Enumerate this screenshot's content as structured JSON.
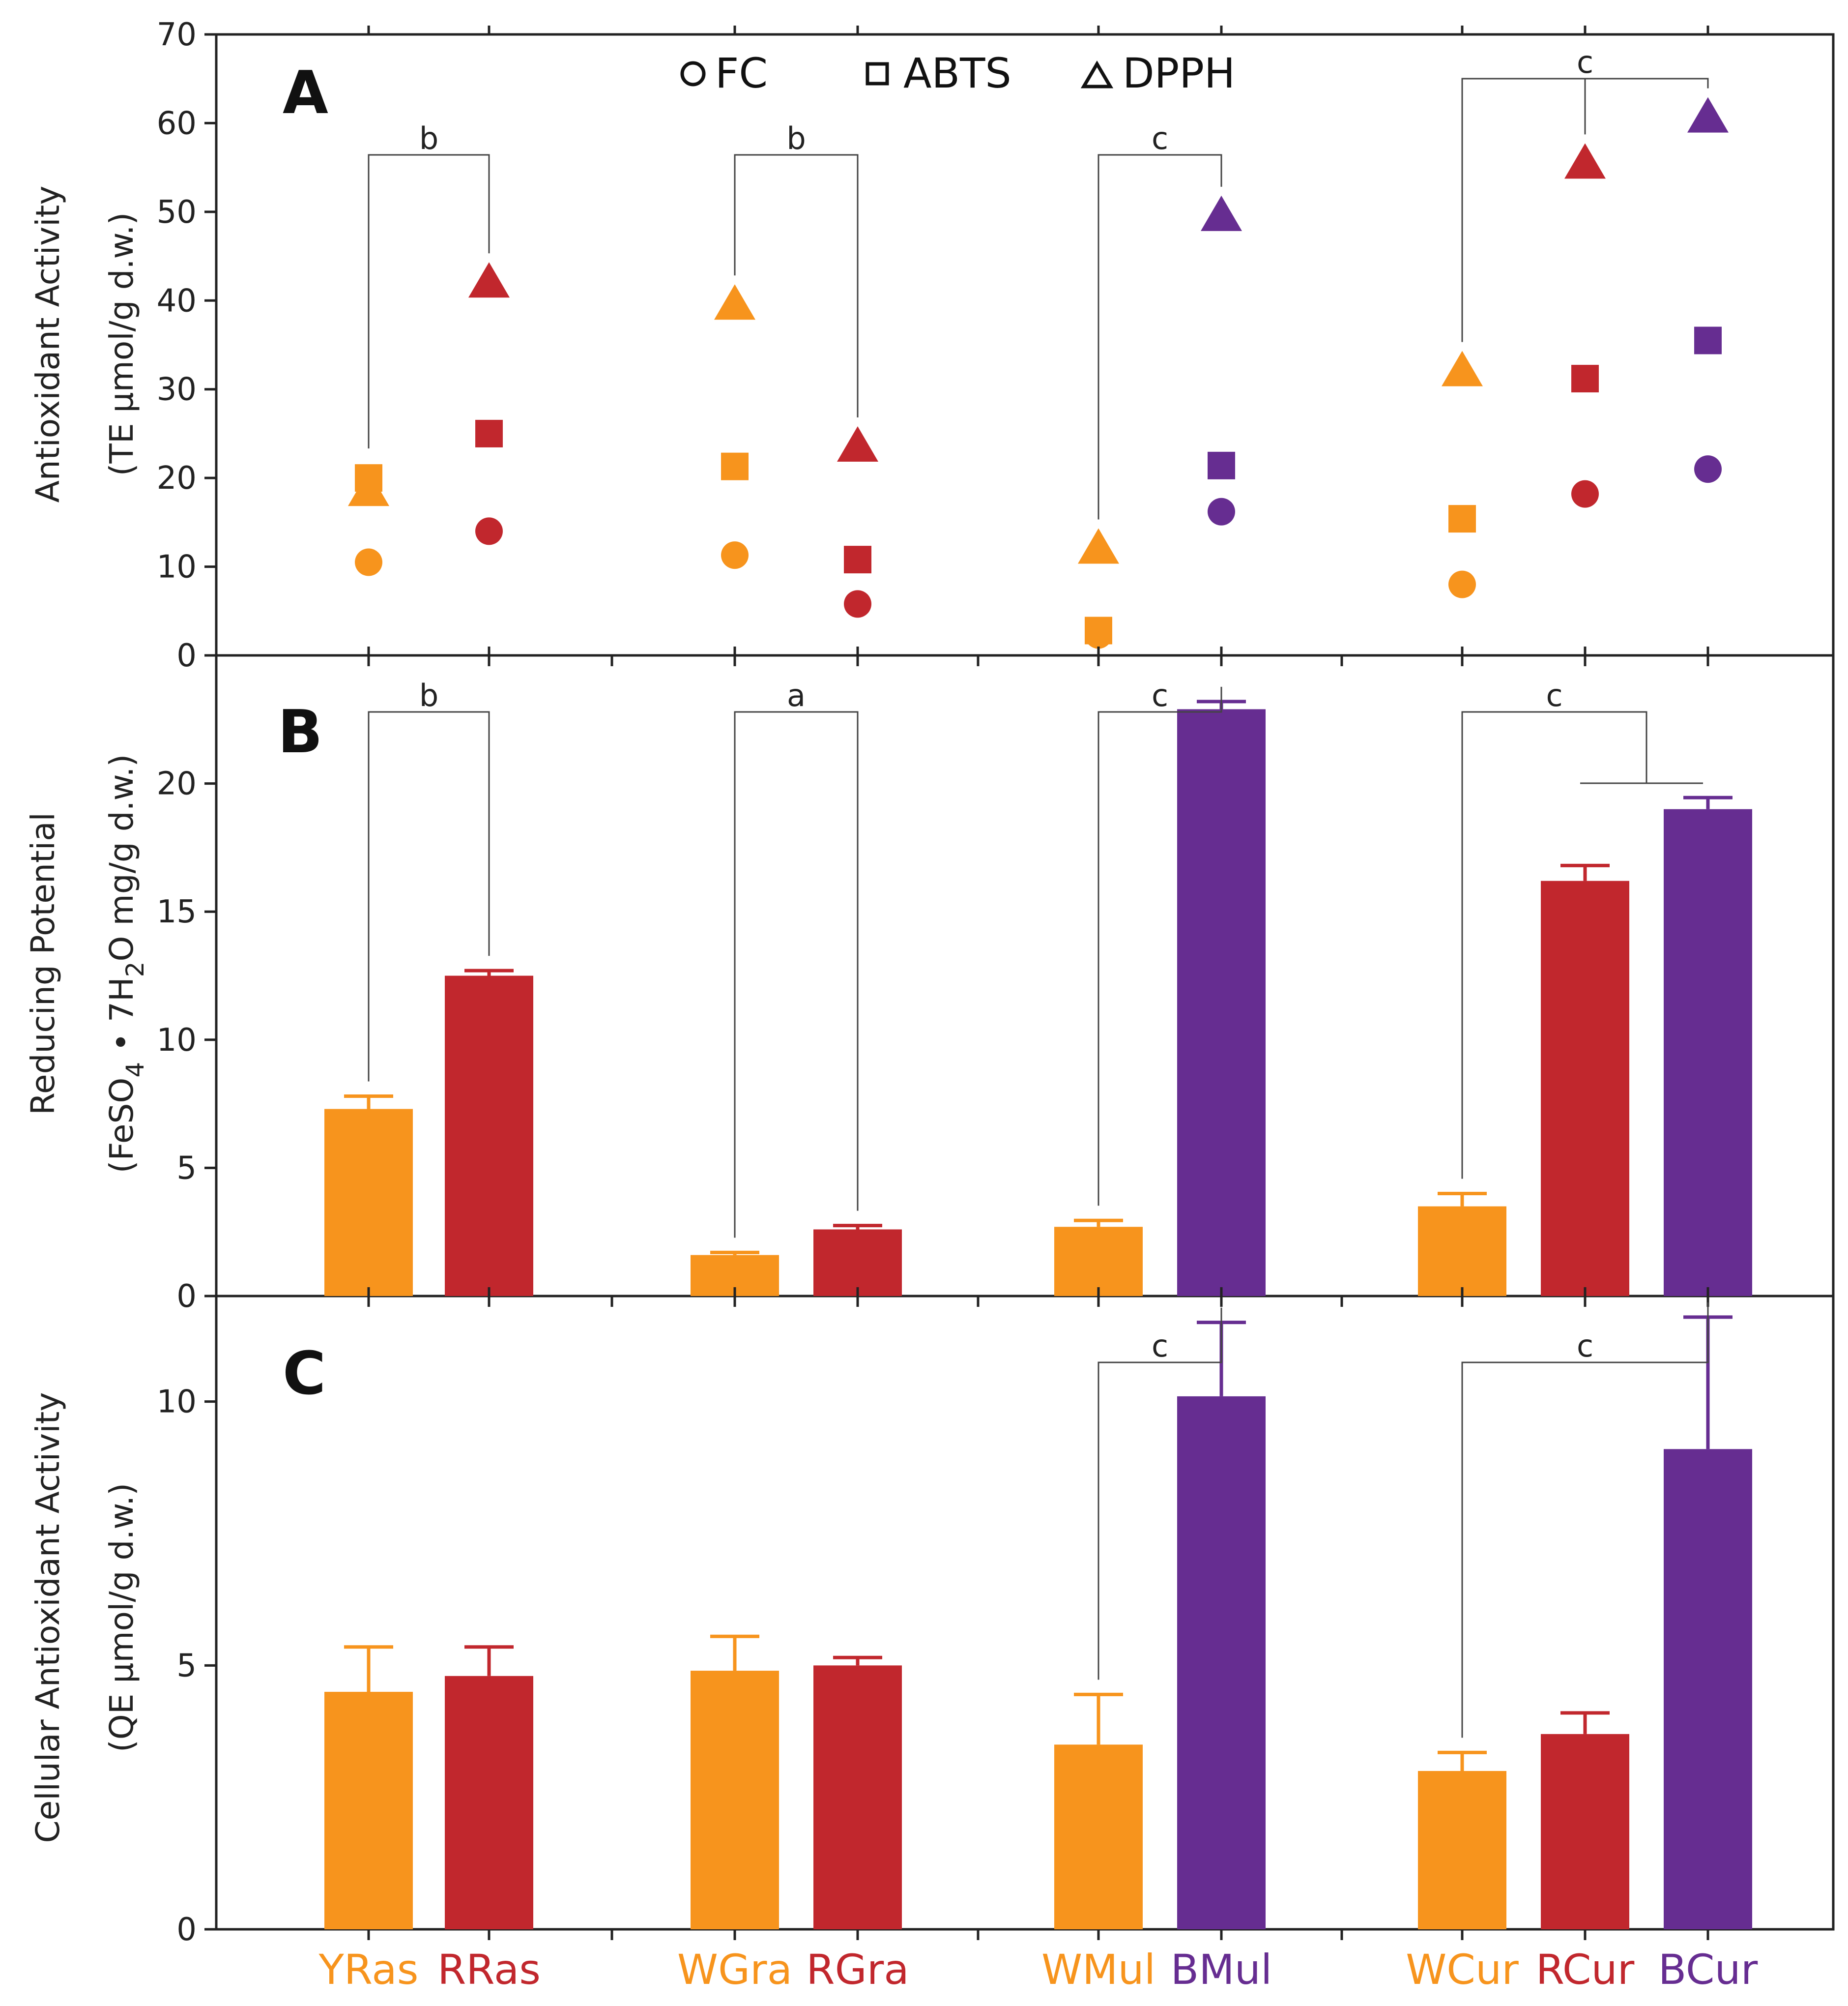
{
  "colors": {
    "orange": "#f7941d",
    "red": "#c1272d",
    "purple": "#662d91"
  },
  "categories": [
    "YRas",
    "RRas",
    "WGra",
    "RGra",
    "WMul",
    "BMul",
    "WCur",
    "RCur",
    "BCur"
  ],
  "category_colors": [
    "orange",
    "red",
    "orange",
    "red",
    "orange",
    "purple",
    "orange",
    "red",
    "purple"
  ],
  "legend": {
    "fc": "FC",
    "abts": "ABTS",
    "dpph": "DPPH"
  },
  "chart_data": [
    {
      "panel": "A",
      "type": "scatter",
      "ylabel_line1": "Antioxidant Activity",
      "ylabel_line2": "(TE μmol/g d.w.)",
      "ylim": [
        0,
        70
      ],
      "yticks": [
        0,
        10,
        20,
        30,
        40,
        50,
        60,
        70
      ],
      "series": [
        {
          "name": "FC",
          "marker": "circle",
          "values": [
            10.5,
            14,
            11.3,
            5.8,
            2.3,
            16.2,
            8,
            18.2,
            21
          ]
        },
        {
          "name": "ABTS",
          "marker": "square",
          "values": [
            20,
            25,
            21.3,
            10.8,
            2.8,
            21.4,
            15.4,
            31.2,
            35.5
          ]
        },
        {
          "name": "DPPH",
          "marker": "triangle",
          "values": [
            18.5,
            42,
            39.5,
            23.5,
            12,
            49.5,
            32,
            55.4,
            60.6
          ]
        }
      ],
      "significance": [
        {
          "label": "b",
          "groups": [
            0,
            1
          ]
        },
        {
          "label": "b",
          "groups": [
            2,
            3
          ]
        },
        {
          "label": "c",
          "groups": [
            4,
            5
          ]
        },
        {
          "label": "c",
          "groups": [
            6,
            7,
            8
          ]
        }
      ]
    },
    {
      "panel": "B",
      "type": "bar",
      "ylabel_line1": "Reducing Potential",
      "ylabel_line2": "(FeSO4 • 7H2O mg/g d.w.)",
      "ylim": [
        0,
        25
      ],
      "yticks": [
        0,
        5,
        10,
        15,
        20
      ],
      "values": [
        7.3,
        12.5,
        1.6,
        2.6,
        2.7,
        22.9,
        3.5,
        16.2,
        19
      ],
      "errors": [
        0.5,
        0.2,
        0.1,
        0.15,
        0.25,
        0.3,
        0.5,
        0.6,
        0.45
      ],
      "significance": [
        {
          "label": "b",
          "groups": [
            0,
            1
          ]
        },
        {
          "label": "a",
          "groups": [
            2,
            3
          ]
        },
        {
          "label": "c",
          "groups": [
            4,
            5
          ]
        },
        {
          "label": "c",
          "groups": [
            6,
            7,
            8
          ]
        }
      ]
    },
    {
      "panel": "C",
      "type": "bar",
      "ylabel_line1": "Cellular Antioxidant Activity",
      "ylabel_line2": "(QE μmol/g d.w.)",
      "ylim": [
        0,
        12
      ],
      "yticks": [
        0,
        5,
        10
      ],
      "values": [
        4.5,
        4.8,
        4.9,
        5,
        3.5,
        10.1,
        3,
        3.7,
        9.1
      ],
      "errors": [
        0.85,
        0.55,
        0.65,
        0.15,
        0.95,
        1.4,
        0.35,
        0.4,
        2.5
      ],
      "significance": [
        {
          "label": "c",
          "groups": [
            4,
            5
          ]
        },
        {
          "label": "c",
          "groups": [
            6,
            8
          ]
        }
      ]
    }
  ]
}
